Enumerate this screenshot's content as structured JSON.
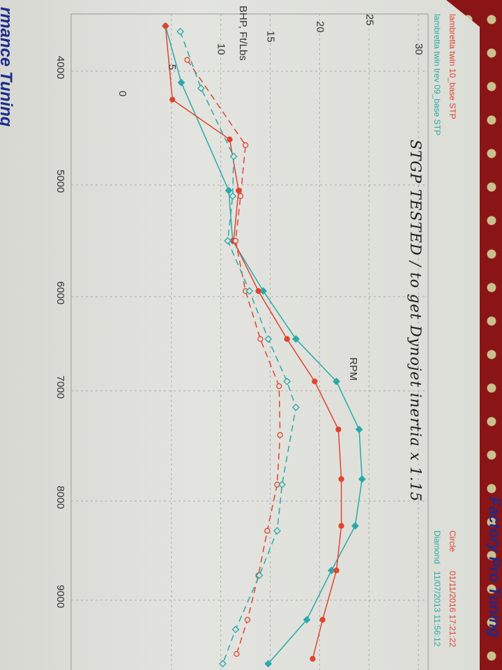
{
  "brand_left": "rmance Tuning",
  "brand_right": "Factory Pro Tuning",
  "handwritten_note": "STGP TESTED / to get Dynojet inertia x 1.15",
  "legend": {
    "run1_name": "lambretta twin 10_base STP",
    "run2_name": "lambretta twin trev 09_base STP",
    "run1_marker": "Circle",
    "run2_marker": "Diamond",
    "run1_date": "01/11/2016 17:21:22",
    "run2_date": "11/07/2013 11:56:12"
  },
  "chart_data": {
    "type": "line",
    "xlabel": "RPM",
    "ylabel": "BHP, Ft/Lbs",
    "x_ticks": [
      "4000",
      "5000",
      "6000",
      "7000",
      "8000",
      "9000"
    ],
    "y_ticks": [
      "0",
      "5",
      "10",
      "15",
      "20",
      "25",
      "30"
    ],
    "xlim": [
      3500,
      9700
    ],
    "ylim": [
      0,
      30
    ],
    "grid": true,
    "colors": {
      "circle": "#e0442e",
      "diamond": "#2aa9a8"
    },
    "series": [
      {
        "marker": "diamond",
        "style": "solid",
        "color": "#2aa9a8",
        "points": [
          [
            3600,
            4.4
          ],
          [
            4100,
            6.0
          ],
          [
            5050,
            10.8
          ],
          [
            5500,
            11.2
          ],
          [
            5950,
            14.3
          ],
          [
            6450,
            17.6
          ],
          [
            6900,
            21.7
          ],
          [
            7350,
            24.0
          ],
          [
            7800,
            24.3
          ],
          [
            8250,
            23.6
          ],
          [
            8700,
            21.2
          ],
          [
            9200,
            18.7
          ],
          [
            9650,
            14.8
          ]
        ]
      },
      {
        "marker": "circle",
        "style": "solid",
        "color": "#e0442e",
        "points": [
          [
            3600,
            4.4
          ],
          [
            4250,
            5.1
          ],
          [
            4600,
            10.9
          ],
          [
            5050,
            11.8
          ],
          [
            5500,
            11.3
          ],
          [
            5950,
            13.8
          ],
          [
            6450,
            16.7
          ],
          [
            6900,
            19.5
          ],
          [
            7350,
            21.9
          ],
          [
            7800,
            22.2
          ],
          [
            8250,
            22.2
          ],
          [
            8700,
            21.7
          ],
          [
            9200,
            20.3
          ],
          [
            9600,
            19.3
          ]
        ]
      },
      {
        "marker": "circle",
        "style": "dashed",
        "color": "#e0442e",
        "points": [
          [
            3900,
            6.6
          ],
          [
            4650,
            12.5
          ],
          [
            5100,
            12.0
          ],
          [
            5500,
            11.5
          ],
          [
            5950,
            12.5
          ],
          [
            6450,
            14.0
          ],
          [
            6950,
            15.9
          ],
          [
            7400,
            16.0
          ],
          [
            7850,
            15.7
          ],
          [
            8300,
            14.7
          ],
          [
            8750,
            13.8
          ],
          [
            9200,
            12.7
          ],
          [
            9550,
            11.6
          ]
        ]
      },
      {
        "marker": "diamond",
        "style": "dashed",
        "color": "#2aa9a8",
        "points": [
          [
            3650,
            5.9
          ],
          [
            4150,
            8.0
          ],
          [
            4750,
            11.3
          ],
          [
            5100,
            11.2
          ],
          [
            5500,
            10.7
          ],
          [
            5950,
            12.9
          ],
          [
            6450,
            14.8
          ],
          [
            6900,
            16.7
          ],
          [
            7150,
            17.6
          ],
          [
            7850,
            16.2
          ],
          [
            8300,
            15.7
          ],
          [
            8750,
            13.9
          ],
          [
            9300,
            11.5
          ],
          [
            9650,
            10.2
          ]
        ]
      }
    ]
  }
}
